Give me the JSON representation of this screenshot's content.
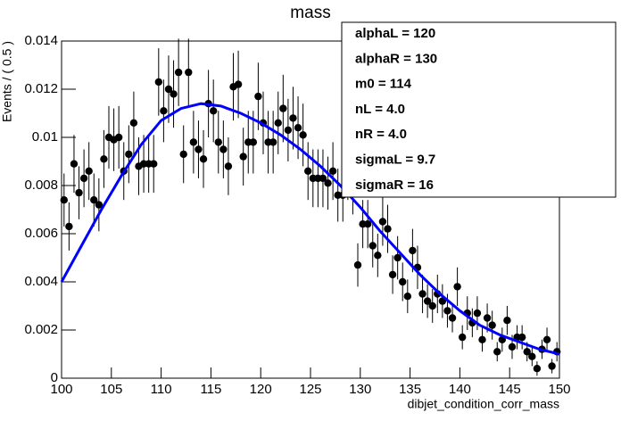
{
  "chart_data": {
    "type": "errorbar",
    "title": "mass",
    "x_label": "dibjet_condition_corr_mass",
    "y_label": "Events / ( 0.5 )",
    "xlim": [
      100,
      150
    ],
    "ylim": [
      0,
      0.014
    ],
    "xticks": [
      100,
      105,
      110,
      115,
      120,
      125,
      130,
      135,
      140,
      145,
      150
    ],
    "yticks": [
      0,
      0.002,
      0.004,
      0.006,
      0.008,
      0.01,
      0.012,
      0.014
    ],
    "data": {
      "color": "#000000",
      "x": [
        100.25,
        100.75,
        101.25,
        101.75,
        102.25,
        102.75,
        103.25,
        103.75,
        104.25,
        104.75,
        105.25,
        105.75,
        106.25,
        106.75,
        107.25,
        107.75,
        108.25,
        108.75,
        109.25,
        109.75,
        110.25,
        110.75,
        111.25,
        111.75,
        112.25,
        112.75,
        113.25,
        113.75,
        114.25,
        114.75,
        115.25,
        115.75,
        116.25,
        116.75,
        117.25,
        117.75,
        118.25,
        118.75,
        119.25,
        119.75,
        120.25,
        120.75,
        121.25,
        121.75,
        122.25,
        122.75,
        123.25,
        123.75,
        124.25,
        124.75,
        125.25,
        125.75,
        126.25,
        126.75,
        127.25,
        127.75,
        128.25,
        128.75,
        129.25,
        129.75,
        130.25,
        130.75,
        131.25,
        131.75,
        132.25,
        132.75,
        133.25,
        133.75,
        134.25,
        134.75,
        135.25,
        135.75,
        136.25,
        136.75,
        137.25,
        137.75,
        138.25,
        138.75,
        139.25,
        139.75,
        140.25,
        140.75,
        141.25,
        141.75,
        142.25,
        142.75,
        143.25,
        143.75,
        144.25,
        144.75,
        145.25,
        145.75,
        146.25,
        146.75,
        147.25,
        147.75,
        148.25,
        148.75,
        149.25,
        149.75
      ],
      "values": [
        0.0074,
        0.0063,
        0.0089,
        0.0077,
        0.0083,
        0.0086,
        0.0074,
        0.0072,
        0.0091,
        0.01,
        0.0099,
        0.01,
        0.0086,
        0.0093,
        0.0106,
        0.0088,
        0.0089,
        0.0089,
        0.0089,
        0.0123,
        0.0111,
        0.012,
        0.0118,
        0.0127,
        0.0093,
        0.0127,
        0.0098,
        0.0095,
        0.0091,
        0.0114,
        0.0111,
        0.0098,
        0.0095,
        0.0088,
        0.0121,
        0.0122,
        0.0092,
        0.0098,
        0.0098,
        0.0117,
        0.0106,
        0.0098,
        0.0098,
        0.0106,
        0.0112,
        0.0103,
        0.0108,
        0.0104,
        0.0101,
        0.0086,
        0.0083,
        0.0083,
        0.0083,
        0.0081,
        0.0086,
        0.0076,
        0.0076,
        0.0086,
        0.0079,
        0.0047,
        0.0064,
        0.0064,
        0.0055,
        0.0051,
        0.0065,
        0.0062,
        0.0043,
        0.005,
        0.004,
        0.0034,
        0.0053,
        0.0046,
        0.0035,
        0.0032,
        0.003,
        0.0035,
        0.0032,
        0.0028,
        0.0025,
        0.0038,
        0.0017,
        0.0027,
        0.0023,
        0.0027,
        0.0016,
        0.0025,
        0.0022,
        0.0011,
        0.0016,
        0.0024,
        0.0013,
        0.0017,
        0.0017,
        0.0011,
        0.0009,
        0.0004,
        0.0012,
        0.0016,
        0.0005,
        0.0011
      ],
      "errors": [
        0.0011,
        0.001,
        0.0012,
        0.0011,
        0.0012,
        0.0012,
        0.0011,
        0.0011,
        0.0012,
        0.0013,
        0.0013,
        0.0013,
        0.0012,
        0.0012,
        0.0013,
        0.0012,
        0.0012,
        0.0012,
        0.0012,
        0.0014,
        0.0013,
        0.0014,
        0.0014,
        0.0014,
        0.0012,
        0.0014,
        0.0013,
        0.0012,
        0.0012,
        0.0014,
        0.0013,
        0.0013,
        0.0012,
        0.0012,
        0.0014,
        0.0014,
        0.0012,
        0.0013,
        0.0013,
        0.0014,
        0.0013,
        0.0013,
        0.0013,
        0.0013,
        0.0014,
        0.0013,
        0.0013,
        0.0013,
        0.0013,
        0.0012,
        0.0012,
        0.0012,
        0.0012,
        0.0011,
        0.0012,
        0.0011,
        0.0011,
        0.0012,
        0.0011,
        0.0009,
        0.001,
        0.001,
        0.0009,
        0.0009,
        0.001,
        0.001,
        0.0008,
        0.0009,
        0.0008,
        0.0007,
        0.0009,
        0.0009,
        0.0008,
        0.0007,
        0.0007,
        0.0008,
        0.0007,
        0.0007,
        0.0006,
        0.0008,
        0.0005,
        0.0007,
        0.0006,
        0.0007,
        0.0005,
        0.0006,
        0.0006,
        0.0004,
        0.0005,
        0.0006,
        0.0005,
        0.0005,
        0.0005,
        0.0004,
        0.0004,
        0.0003,
        0.0004,
        0.0005,
        0.0003,
        0.0004
      ]
    },
    "fit": {
      "color": "#0000ff",
      "x": [
        100,
        102,
        104,
        106,
        108,
        110,
        112,
        114,
        116,
        118,
        120,
        122,
        124,
        126,
        128,
        130,
        132,
        134,
        136,
        138,
        140,
        142,
        144,
        146,
        148,
        150
      ],
      "values": [
        0.004,
        0.0055,
        0.007,
        0.0084,
        0.0097,
        0.0107,
        0.0112,
        0.0114,
        0.0113,
        0.011,
        0.0106,
        0.0101,
        0.0095,
        0.0088,
        0.008,
        0.0071,
        0.0061,
        0.0052,
        0.0043,
        0.0035,
        0.0028,
        0.0022,
        0.0018,
        0.0015,
        0.0012,
        0.001
      ]
    },
    "parameters": [
      "alphaL =  120",
      "alphaR =  130",
      "m0 =  114",
      "nL =  4.0",
      "nR =  4.0",
      "sigmaL =  9.7",
      "sigmaR =  16"
    ]
  }
}
